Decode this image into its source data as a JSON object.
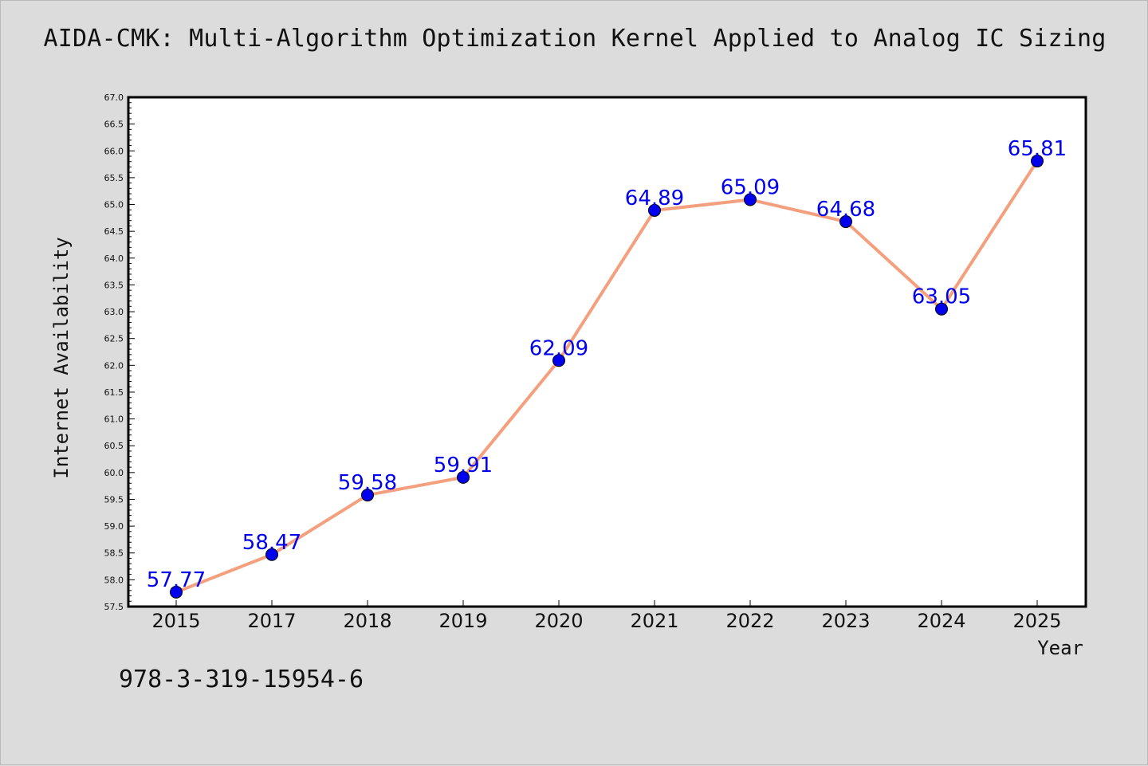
{
  "chart_data": {
    "type": "line",
    "title": "AIDA-CMK: Multi-Algorithm Optimization Kernel Applied to Analog IC Sizing",
    "xlabel": "Year",
    "ylabel": "Internet Availability",
    "categories": [
      "2015",
      "2017",
      "2018",
      "2019",
      "2020",
      "2021",
      "2022",
      "2023",
      "2024",
      "2025"
    ],
    "values": [
      57.77,
      58.47,
      59.58,
      59.91,
      62.09,
      64.89,
      65.09,
      64.68,
      63.05,
      65.81
    ],
    "data_labels": [
      "57.77",
      "58.47",
      "59.58",
      "59.91",
      "62.09",
      "64.89",
      "65.09",
      "64.68",
      "63.05",
      "65.81"
    ],
    "ylim": [
      57.5,
      67.0
    ],
    "yticks": [
      "57.5",
      "58.0",
      "58.5",
      "59.0",
      "59.5",
      "60.0",
      "60.5",
      "61.0",
      "61.5",
      "62.0",
      "62.5",
      "63.0",
      "63.5",
      "64.0",
      "64.5",
      "65.0",
      "65.5",
      "66.0",
      "66.5",
      "67.0"
    ],
    "grid": false,
    "line_color": "#f4a07e",
    "marker_color": "#0000ee",
    "label_color": "#0000ee"
  },
  "footer": {
    "isbn": "978-3-319-15954-6"
  }
}
